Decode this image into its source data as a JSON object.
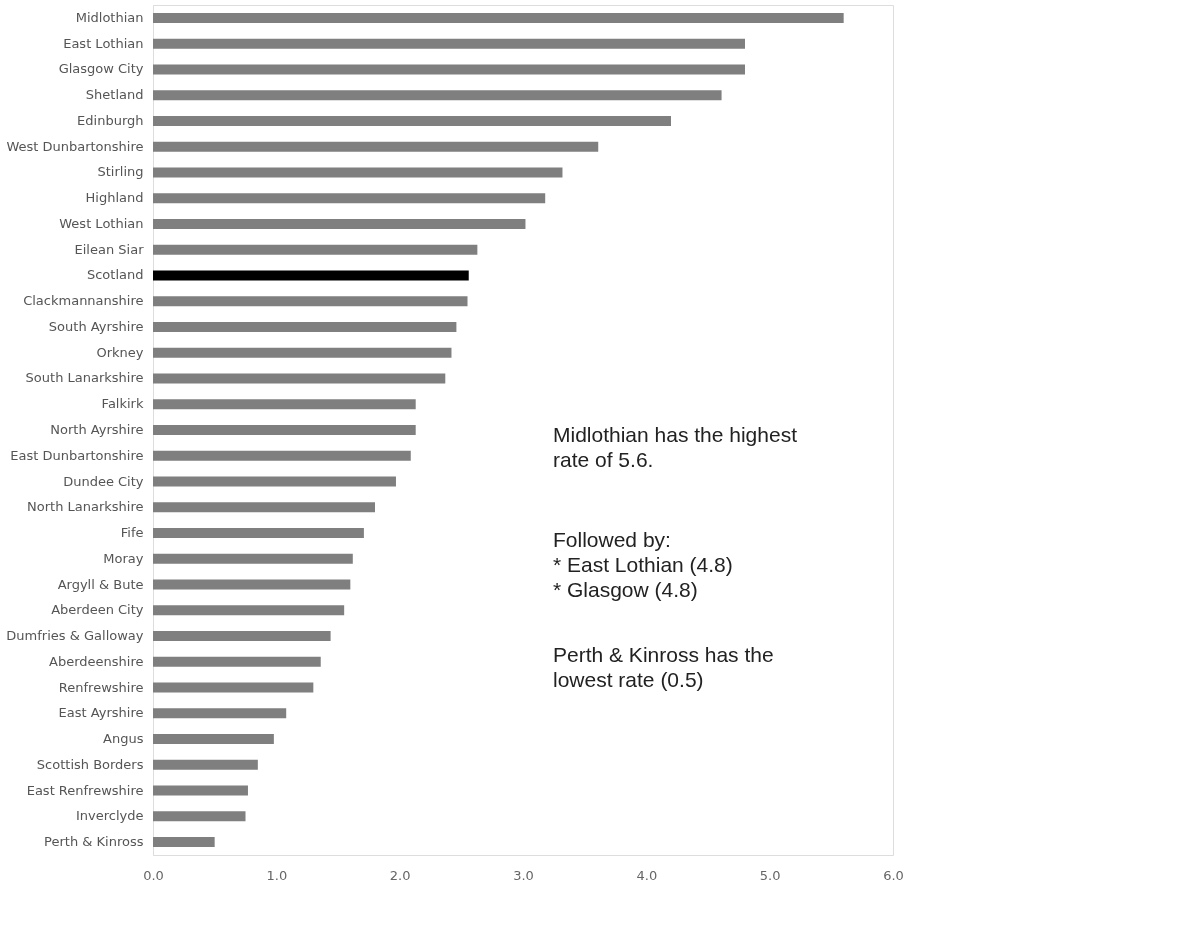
{
  "chart_data": {
    "type": "bar",
    "orientation": "horizontal",
    "categories": [
      "Midlothian",
      "East Lothian",
      "Glasgow City",
      "Shetland",
      "Edinburgh",
      "West Dunbartonshire",
      "Stirling",
      "Highland",
      "West Lothian",
      "Eilean Siar",
      "Scotland",
      "Clackmannanshire",
      "South Ayrshire",
      "Orkney",
      "South Lanarkshire",
      "Falkirk",
      "North Ayrshire",
      "East Dunbartonshire",
      "Dundee City",
      "North Lanarkshire",
      "Fife",
      "Moray",
      "Argyll & Bute",
      "Aberdeen City",
      "Dumfries & Galloway",
      "Aberdeenshire",
      "Renfrewshire",
      "East Ayrshire",
      "Angus",
      "Scottish Borders",
      "East Renfrewshire",
      "Inverclyde",
      "Perth & Kinross"
    ],
    "values": [
      5.6,
      4.8,
      4.8,
      4.61,
      4.2,
      3.61,
      3.32,
      3.18,
      3.02,
      2.63,
      2.56,
      2.55,
      2.46,
      2.42,
      2.37,
      2.13,
      2.13,
      2.09,
      1.97,
      1.8,
      1.71,
      1.62,
      1.6,
      1.55,
      1.44,
      1.36,
      1.3,
      1.08,
      0.98,
      0.85,
      0.77,
      0.75,
      0.5
    ],
    "colors": [
      "#7f7f7f",
      "#7f7f7f",
      "#7f7f7f",
      "#7f7f7f",
      "#7f7f7f",
      "#7f7f7f",
      "#7f7f7f",
      "#7f7f7f",
      "#7f7f7f",
      "#7f7f7f",
      "#000000",
      "#7f7f7f",
      "#7f7f7f",
      "#7f7f7f",
      "#7f7f7f",
      "#7f7f7f",
      "#7f7f7f",
      "#7f7f7f",
      "#7f7f7f",
      "#7f7f7f",
      "#7f7f7f",
      "#7f7f7f",
      "#7f7f7f",
      "#7f7f7f",
      "#7f7f7f",
      "#7f7f7f",
      "#7f7f7f",
      "#7f7f7f",
      "#7f7f7f",
      "#7f7f7f",
      "#7f7f7f",
      "#7f7f7f",
      "#7f7f7f"
    ],
    "xlim": [
      0,
      6
    ],
    "xticks": [
      {
        "value": 0,
        "label": "0.0"
      },
      {
        "value": 1,
        "label": "1.0"
      },
      {
        "value": 2,
        "label": "2.0"
      },
      {
        "value": 3,
        "label": "3.0"
      },
      {
        "value": 4,
        "label": "4.0"
      },
      {
        "value": 5,
        "label": "5.0"
      },
      {
        "value": 6,
        "label": "6.0"
      }
    ],
    "grid": false,
    "annotations": [
      "Midlothian has the highest\nrate of 5.6.",
      "Followed by:\n* East Lothian (4.8)\n* Glasgow (4.8)",
      "Perth & Kinross has the\nlowest rate (0.5)"
    ]
  }
}
